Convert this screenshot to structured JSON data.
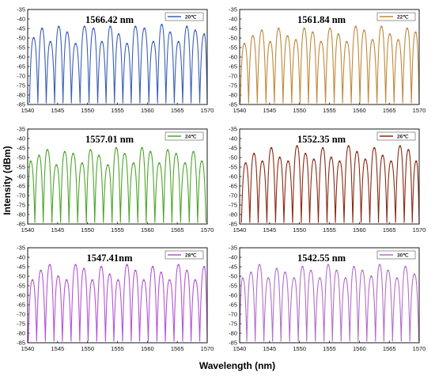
{
  "figure": {
    "ylabel": "Intensity (dBm)",
    "xlabel": "Wavelength (nm)"
  },
  "chart_data": [
    {
      "type": "line",
      "legend": "20℃",
      "annotation": "1566.42 nm",
      "color": "#3a5fb8",
      "xlim": [
        1540,
        1570
      ],
      "ylim": [
        -85,
        -35
      ],
      "xticks": [
        1540,
        1545,
        1550,
        1555,
        1560,
        1565,
        1570
      ],
      "yticks": [
        -35,
        -40,
        -45,
        -50,
        -55,
        -60,
        -65,
        -70,
        -75,
        -80,
        -85
      ],
      "x": [
        1541.0,
        1542.4,
        1543.8,
        1545.2,
        1546.6,
        1548.0,
        1549.5,
        1551.0,
        1552.4,
        1553.8,
        1555.2,
        1556.6,
        1558.0,
        1559.5,
        1561.0,
        1562.4,
        1563.8,
        1565.2,
        1566.6,
        1568.0,
        1569.5
      ],
      "y": [
        -50,
        -45,
        -52,
        -44,
        -47,
        -53,
        -44,
        -45,
        -52,
        -44,
        -48,
        -53,
        -44,
        -45,
        -52,
        -43,
        -47,
        -52,
        -44,
        -46,
        -48
      ]
    },
    {
      "type": "line",
      "legend": "22℃",
      "annotation": "1561.84 nm",
      "color": "#c0883a",
      "xlim": [
        1540,
        1570
      ],
      "ylim": [
        -85,
        -35
      ],
      "xticks": [
        1540,
        1545,
        1550,
        1555,
        1560,
        1565,
        1570
      ],
      "yticks": [
        -35,
        -40,
        -45,
        -50,
        -55,
        -60,
        -65,
        -70,
        -75,
        -80,
        -85
      ],
      "x": [
        1540.8,
        1542.2,
        1543.7,
        1545.1,
        1546.5,
        1548.0,
        1549.4,
        1550.8,
        1552.2,
        1553.6,
        1555.1,
        1556.5,
        1557.9,
        1559.4,
        1560.8,
        1562.2,
        1563.7,
        1565.1,
        1566.5,
        1568.0,
        1569.4
      ],
      "y": [
        -53,
        -49,
        -46,
        -52,
        -45,
        -49,
        -51,
        -45,
        -47,
        -52,
        -45,
        -48,
        -52,
        -44,
        -46,
        -51,
        -44,
        -48,
        -51,
        -45,
        -47
      ]
    },
    {
      "type": "line",
      "legend": "24℃",
      "annotation": "1557.01 nm",
      "color": "#4da52a",
      "xlim": [
        1540,
        1570
      ],
      "ylim": [
        -85,
        -35
      ],
      "xticks": [
        1540,
        1545,
        1550,
        1555,
        1560,
        1565,
        1570
      ],
      "yticks": [
        -35,
        -40,
        -45,
        -50,
        -55,
        -60,
        -65,
        -70,
        -75,
        -80,
        -85
      ],
      "x": [
        1540.5,
        1541.9,
        1543.3,
        1544.8,
        1546.2,
        1547.6,
        1549.1,
        1550.5,
        1551.9,
        1553.4,
        1554.8,
        1556.2,
        1557.7,
        1559.1,
        1560.5,
        1562.0,
        1563.4,
        1564.8,
        1566.3,
        1567.7,
        1569.1
      ],
      "y": [
        -52,
        -49,
        -46,
        -54,
        -47,
        -48,
        -53,
        -46,
        -49,
        -54,
        -45,
        -48,
        -53,
        -45,
        -47,
        -53,
        -46,
        -48,
        -53,
        -47,
        -52
      ]
    },
    {
      "type": "line",
      "legend": "26℃",
      "annotation": "1552.35 nm",
      "color": "#8a2a12",
      "xlim": [
        1540,
        1570
      ],
      "ylim": [
        -85,
        -35
      ],
      "xticks": [
        1540,
        1545,
        1550,
        1555,
        1560,
        1565,
        1570
      ],
      "yticks": [
        -35,
        -40,
        -45,
        -50,
        -55,
        -60,
        -65,
        -70,
        -75,
        -80,
        -85
      ],
      "x": [
        1541.0,
        1542.4,
        1543.8,
        1545.3,
        1546.7,
        1548.1,
        1549.6,
        1551.0,
        1552.4,
        1553.9,
        1555.3,
        1556.7,
        1558.2,
        1559.6,
        1561.0,
        1562.5,
        1563.9,
        1565.3,
        1566.8,
        1568.2,
        1569.5
      ],
      "y": [
        -53,
        -48,
        -52,
        -45,
        -50,
        -52,
        -44,
        -48,
        -51,
        -45,
        -50,
        -52,
        -44,
        -47,
        -51,
        -45,
        -49,
        -52,
        -44,
        -46,
        -52
      ]
    },
    {
      "type": "line",
      "legend": "28℃",
      "annotation": "1547.41nm",
      "color": "#b455d6",
      "xlim": [
        1540,
        1570
      ],
      "ylim": [
        -85,
        -35
      ],
      "xticks": [
        1540,
        1545,
        1550,
        1555,
        1560,
        1565,
        1570
      ],
      "yticks": [
        -35,
        -40,
        -45,
        -50,
        -55,
        -60,
        -65,
        -70,
        -75,
        -80,
        -85
      ],
      "x": [
        1540.8,
        1542.2,
        1543.7,
        1545.1,
        1546.5,
        1548.0,
        1549.4,
        1550.8,
        1552.3,
        1553.7,
        1555.1,
        1556.6,
        1558.0,
        1559.4,
        1560.9,
        1562.3,
        1563.7,
        1565.2,
        1566.6,
        1568.0,
        1569.5
      ],
      "y": [
        -52,
        -47,
        -44,
        -50,
        -52,
        -44,
        -46,
        -52,
        -45,
        -49,
        -52,
        -44,
        -47,
        -52,
        -45,
        -48,
        -52,
        -44,
        -47,
        -52,
        -45
      ]
    },
    {
      "type": "line",
      "legend": "30℃",
      "annotation": "1542.55 nm",
      "color": "#b36fc9",
      "xlim": [
        1540,
        1570
      ],
      "ylim": [
        -85,
        -35
      ],
      "xticks": [
        1540,
        1545,
        1550,
        1555,
        1560,
        1565,
        1570
      ],
      "yticks": [
        -35,
        -40,
        -45,
        -50,
        -55,
        -60,
        -65,
        -70,
        -75,
        -80,
        -85
      ],
      "x": [
        1540.5,
        1541.9,
        1543.3,
        1544.8,
        1546.2,
        1547.6,
        1549.1,
        1550.5,
        1551.9,
        1553.4,
        1554.8,
        1556.2,
        1557.7,
        1559.1,
        1560.5,
        1562.0,
        1563.4,
        1564.8,
        1566.3,
        1567.7,
        1569.2
      ],
      "y": [
        -51,
        -48,
        -44,
        -51,
        -46,
        -48,
        -51,
        -45,
        -47,
        -51,
        -44,
        -47,
        -51,
        -45,
        -47,
        -50,
        -44,
        -47,
        -51,
        -45,
        -49
      ]
    }
  ]
}
